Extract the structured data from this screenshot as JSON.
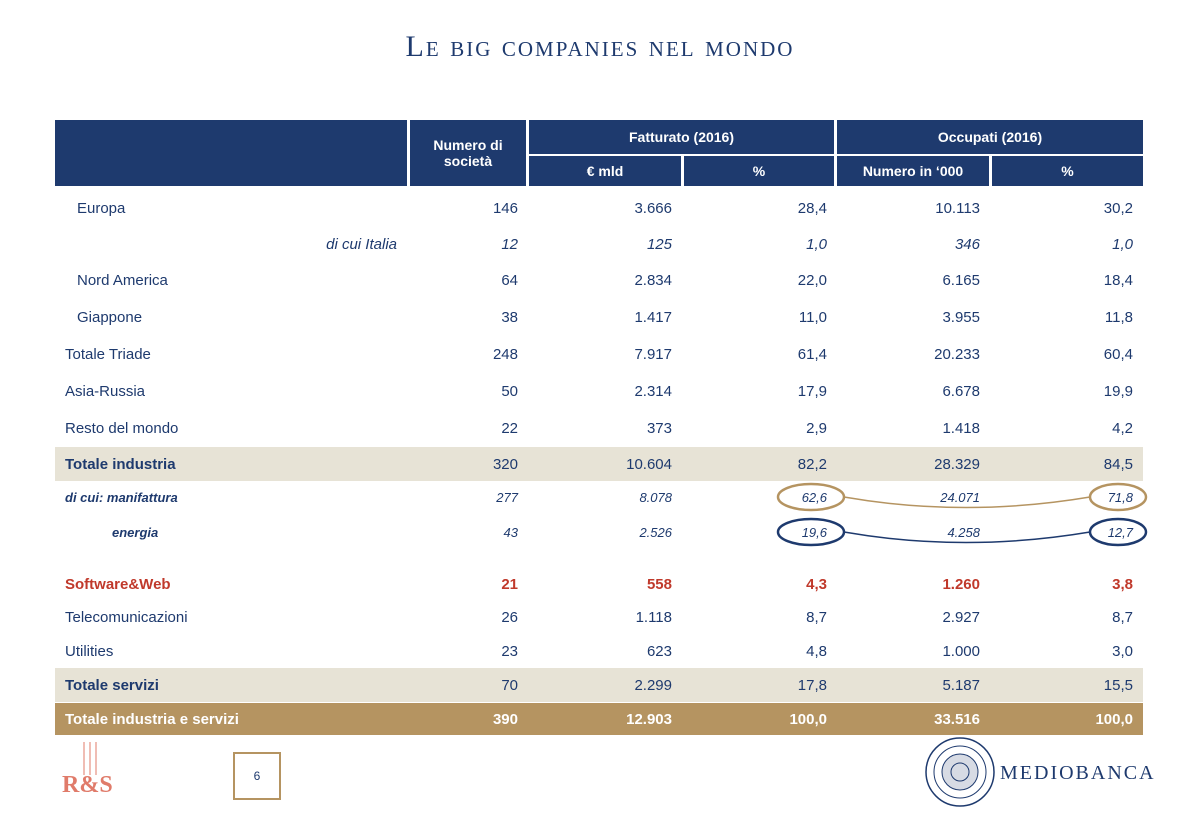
{
  "title": "Le big companies nel mondo",
  "header": {
    "col_numero": "Numero di società",
    "group_fatturato": "Fatturato (2016)",
    "group_occupati": "Occupati (2016)",
    "sub_eur": "€ mld",
    "sub_pct1": "%",
    "sub_numero": "Numero in ‘000",
    "sub_pct2": "%"
  },
  "rows": [
    {
      "label": "Europa",
      "n": "146",
      "f": "3.666",
      "fp": "28,4",
      "o": "10.113",
      "op": "30,2"
    },
    {
      "label": "di cui Italia",
      "n": "12",
      "f": "125",
      "fp": "1,0",
      "o": "346",
      "op": "1,0"
    },
    {
      "label": "Nord America",
      "n": "64",
      "f": "2.834",
      "fp": "22,0",
      "o": "6.165",
      "op": "18,4"
    },
    {
      "label": "Giappone",
      "n": "38",
      "f": "1.417",
      "fp": "11,0",
      "o": "3.955",
      "op": "11,8"
    },
    {
      "label": "Totale Triade",
      "n": "248",
      "f": "7.917",
      "fp": "61,4",
      "o": "20.233",
      "op": "60,4"
    },
    {
      "label": "Asia-Russia",
      "n": "50",
      "f": "2.314",
      "fp": "17,9",
      "o": "6.678",
      "op": "19,9"
    },
    {
      "label": "Resto del mondo",
      "n": "22",
      "f": "373",
      "fp": "2,9",
      "o": "1.418",
      "op": "4,2"
    },
    {
      "label": "Totale industria",
      "n": "320",
      "f": "10.604",
      "fp": "82,2",
      "o": "28.329",
      "op": "84,5"
    },
    {
      "label": "di cui: manifattura",
      "n": "277",
      "f": "8.078",
      "fp": "62,6",
      "o": "24.071",
      "op": "71,8"
    },
    {
      "label": "energia",
      "n": "43",
      "f": "2.526",
      "fp": "19,6",
      "o": "4.258",
      "op": "12,7"
    },
    {
      "label": "Software&Web",
      "n": "21",
      "f": "558",
      "fp": "4,3",
      "o": "1.260",
      "op": "3,8"
    },
    {
      "label": "Telecomunicazioni",
      "n": "26",
      "f": "1.118",
      "fp": "8,7",
      "o": "2.927",
      "op": "8,7"
    },
    {
      "label": "Utilities",
      "n": "23",
      "f": "623",
      "fp": "4,8",
      "o": "1.000",
      "op": "3,0"
    },
    {
      "label": "Totale servizi",
      "n": "70",
      "f": "2.299",
      "fp": "17,8",
      "o": "5.187",
      "op": "15,5"
    },
    {
      "label": "Totale industria e servizi",
      "n": "390",
      "f": "12.903",
      "fp": "100,0",
      "o": "33.516",
      "op": "100,0"
    }
  ],
  "footer": {
    "logo_left": "R&S",
    "page_number": "6",
    "logo_right": "MEDIOBANCA"
  },
  "colors": {
    "navy": "#1e3a6e",
    "beige": "#e7e3d6",
    "gold": "#b59461",
    "red": "#c0392b"
  }
}
